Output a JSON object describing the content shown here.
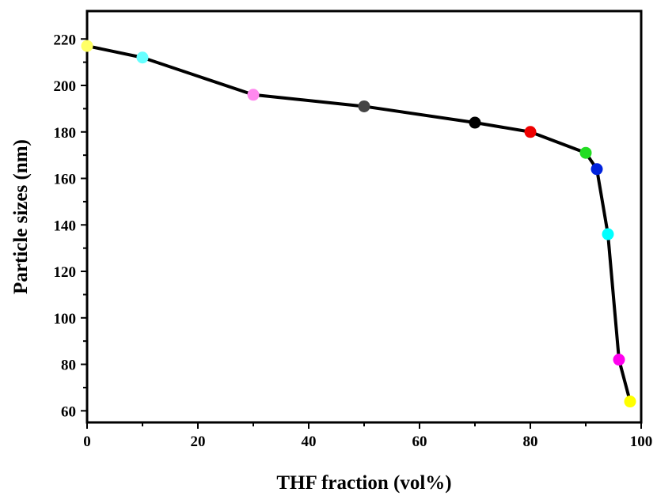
{
  "chart_data": {
    "type": "line",
    "xlabel": "THF fraction (vol%)",
    "ylabel": "Particle sizes (nm)",
    "xlim": [
      0,
      100
    ],
    "ylim": [
      55,
      232
    ],
    "xticks": [
      0,
      20,
      40,
      60,
      80,
      100
    ],
    "yticks": [
      60,
      80,
      100,
      120,
      140,
      160,
      180,
      200,
      220
    ],
    "grid": false,
    "line_color": "#000000",
    "points": [
      {
        "x": 0,
        "y": 217,
        "color": "#ffff66"
      },
      {
        "x": 10,
        "y": 212,
        "color": "#66ffff"
      },
      {
        "x": 30,
        "y": 196,
        "color": "#ff88ee"
      },
      {
        "x": 50,
        "y": 191,
        "color": "#444444"
      },
      {
        "x": 70,
        "y": 184,
        "color": "#000000"
      },
      {
        "x": 80,
        "y": 180,
        "color": "#ee0000"
      },
      {
        "x": 90,
        "y": 171,
        "color": "#22dd22"
      },
      {
        "x": 92,
        "y": 164,
        "color": "#0022dd"
      },
      {
        "x": 94,
        "y": 136,
        "color": "#00ffff"
      },
      {
        "x": 96,
        "y": 82,
        "color": "#ff00ee"
      },
      {
        "x": 98,
        "y": 64,
        "color": "#ffff00"
      }
    ]
  }
}
